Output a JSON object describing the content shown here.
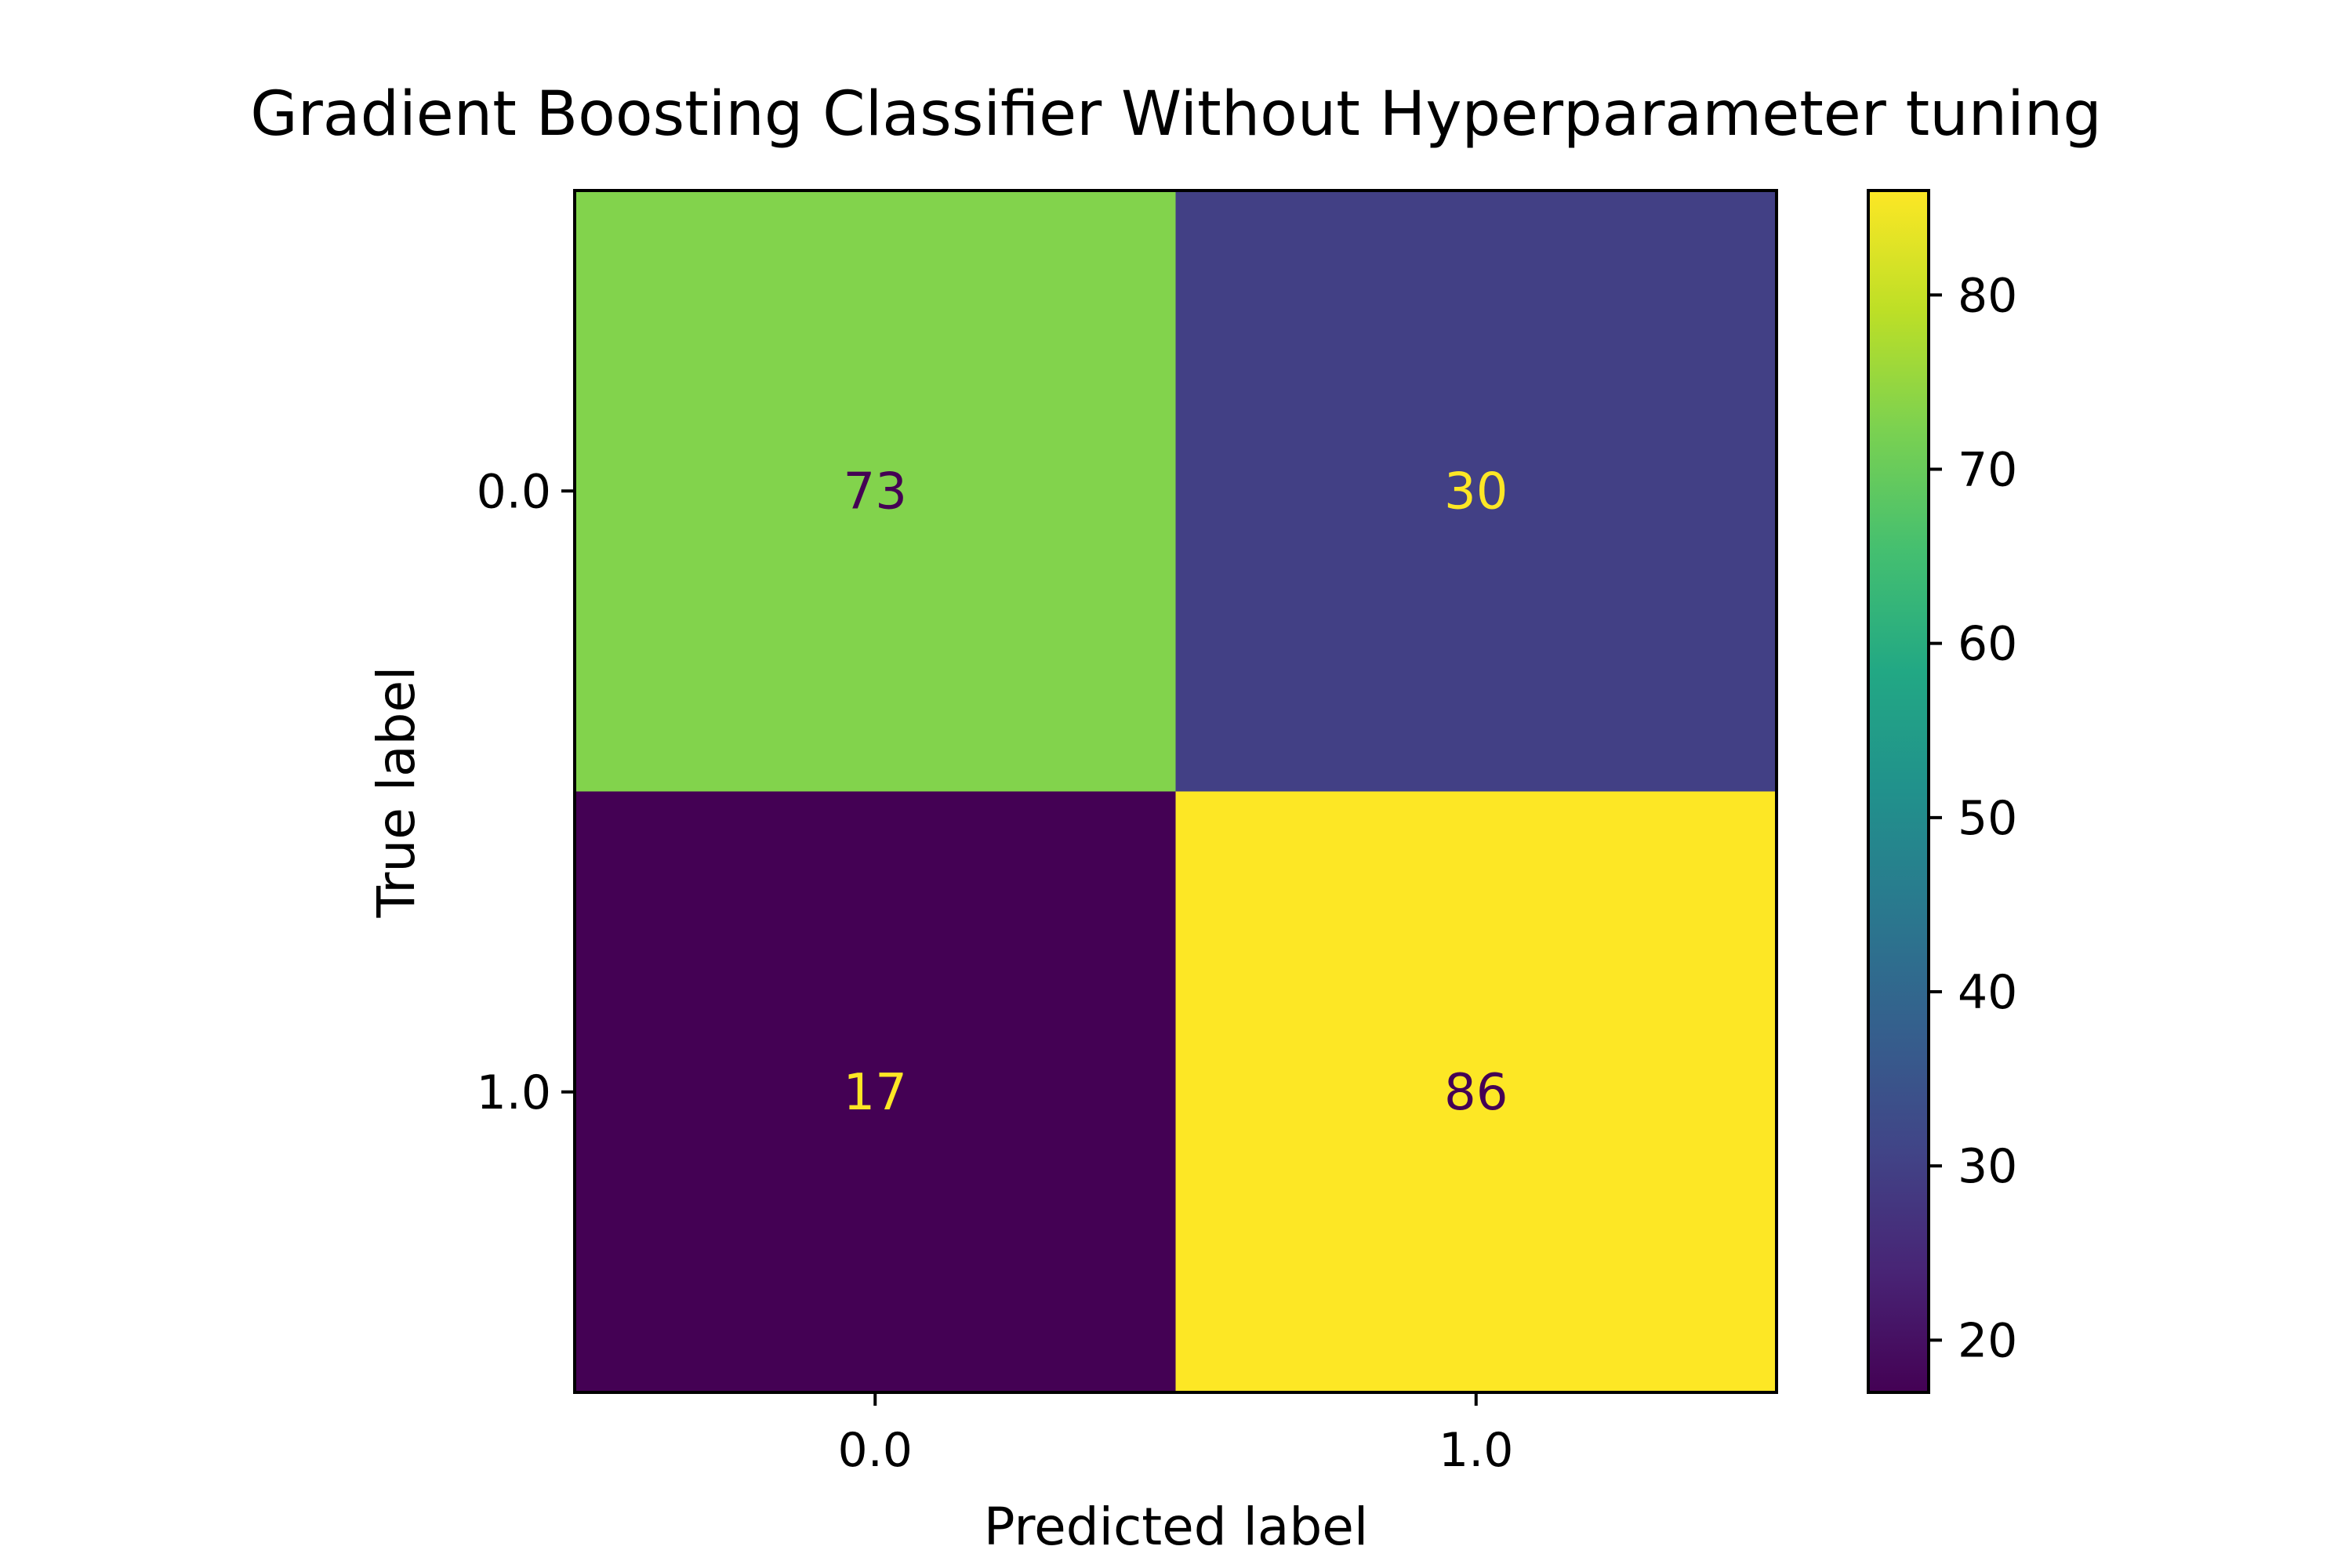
{
  "chart_data": {
    "type": "heatmap",
    "title": "Gradient Boosting Classifier Without Hyperparameter tuning",
    "xlabel": "Predicted label",
    "ylabel": "True label",
    "x_categories": [
      "0.0",
      "1.0"
    ],
    "y_categories": [
      "0.0",
      "1.0"
    ],
    "values": [
      [
        73,
        30
      ],
      [
        17,
        86
      ]
    ],
    "colormap": "viridis",
    "colorbar": {
      "min": 17,
      "max": 86,
      "ticks": [
        20,
        30,
        40,
        50,
        60,
        70,
        80
      ],
      "tick_labels": [
        "20",
        "30",
        "40",
        "50",
        "60",
        "70",
        "80"
      ]
    },
    "grid": false,
    "legend": "colorbar-right"
  }
}
